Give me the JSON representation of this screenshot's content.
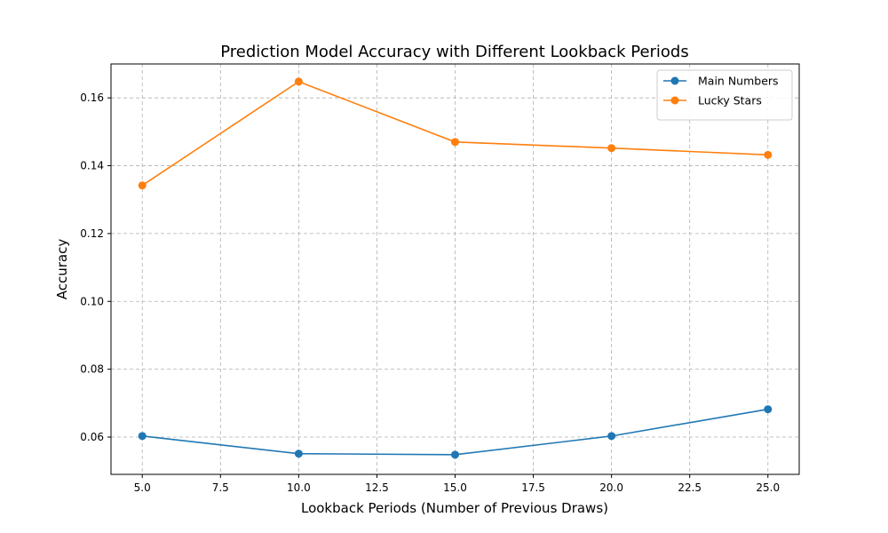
{
  "chart_data": {
    "type": "line",
    "title": "Prediction Model Accuracy with Different Lookback Periods",
    "xlabel": "Lookback Periods (Number of Previous Draws)",
    "ylabel": "Accuracy",
    "x": [
      5,
      10,
      15,
      20,
      25
    ],
    "xlim": [
      4,
      26
    ],
    "ylim": [
      0.049,
      0.17
    ],
    "xticks": [
      5.0,
      7.5,
      10.0,
      12.5,
      15.0,
      17.5,
      20.0,
      22.5,
      25.0
    ],
    "xtick_labels": [
      "5.0",
      "7.5",
      "10.0",
      "12.5",
      "15.0",
      "17.5",
      "20.0",
      "22.5",
      "25.0"
    ],
    "yticks": [
      0.06,
      0.08,
      0.1,
      0.12,
      0.14,
      0.16
    ],
    "ytick_labels": [
      "0.06",
      "0.08",
      "0.10",
      "0.12",
      "0.14",
      "0.16"
    ],
    "grid": true,
    "grid_style": "dashed",
    "legend_position": "top-right",
    "series": [
      {
        "name": "Main Numbers",
        "color": "#1f77b4",
        "values": [
          0.0603,
          0.0551,
          0.0548,
          0.0603,
          0.0682
        ]
      },
      {
        "name": "Lucky Stars",
        "color": "#ff7f0e",
        "values": [
          0.1342,
          0.1648,
          0.147,
          0.1452,
          0.1432
        ]
      }
    ]
  }
}
